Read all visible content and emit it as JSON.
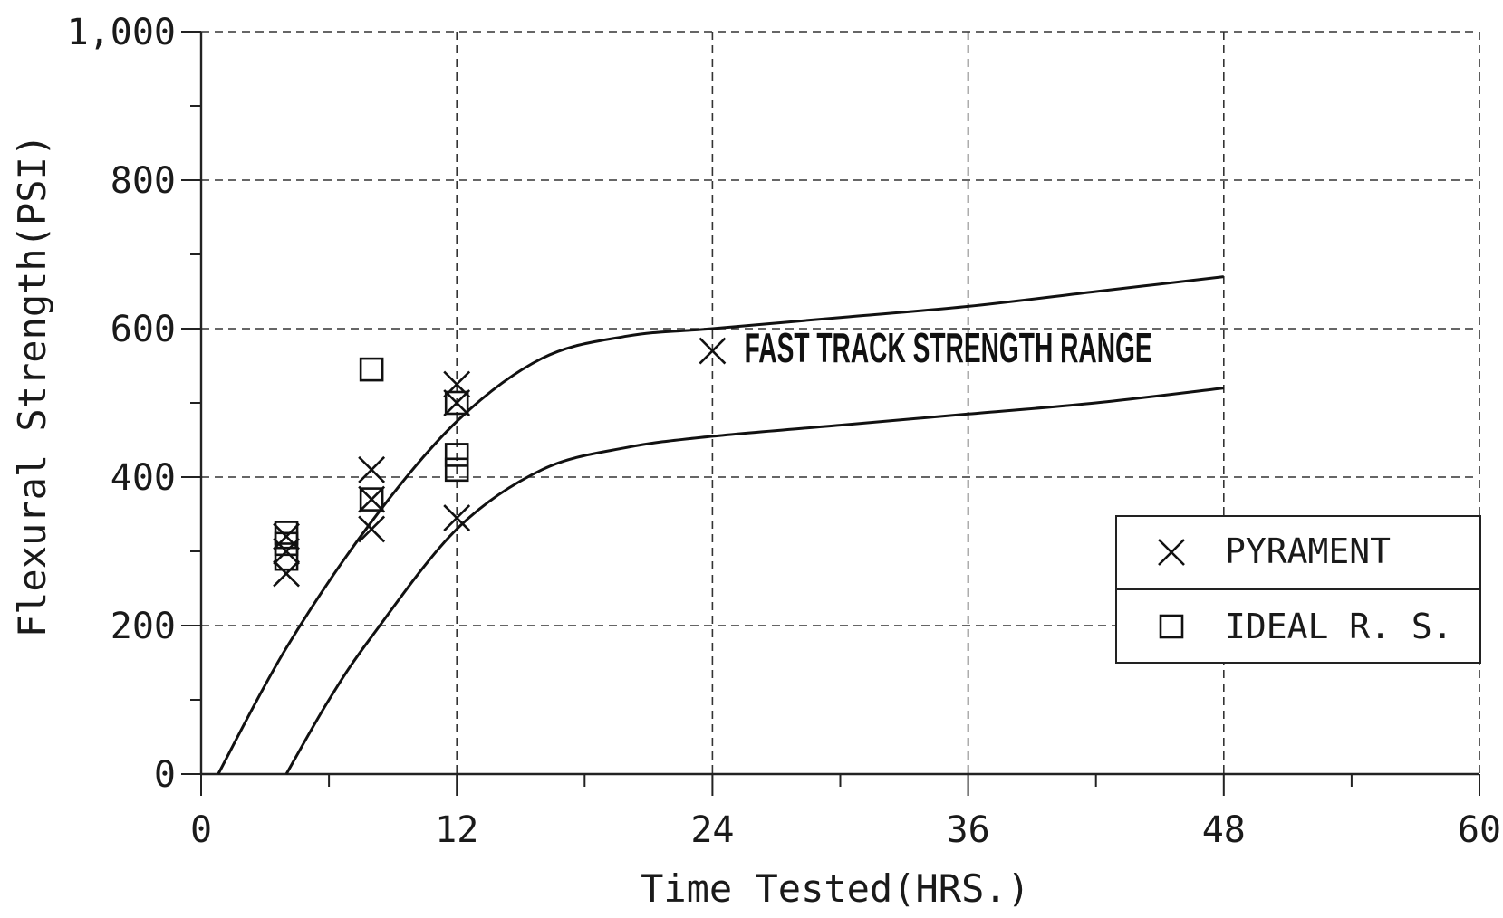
{
  "chart_data": {
    "type": "scatter",
    "title": "",
    "xlabel": "Time Tested(HRS.)",
    "ylabel": "Flexural Strength(PSI)",
    "xlim": [
      0,
      60
    ],
    "ylim": [
      0,
      1000
    ],
    "x_ticks": [
      {
        "value": 0,
        "label": "0"
      },
      {
        "value": 12,
        "label": "12"
      },
      {
        "value": 24,
        "label": "24"
      },
      {
        "value": 36,
        "label": "36"
      },
      {
        "value": 48,
        "label": "48"
      },
      {
        "value": 60,
        "label": "60"
      }
    ],
    "y_ticks": [
      {
        "value": 0,
        "label": "0"
      },
      {
        "value": 200,
        "label": "200"
      },
      {
        "value": 400,
        "label": "400"
      },
      {
        "value": 600,
        "label": "600"
      },
      {
        "value": 800,
        "label": "800"
      },
      {
        "value": 1000,
        "label": "1,000"
      }
    ],
    "grid": true,
    "legend_position": "right",
    "legend": [
      {
        "name": "PYRAMENT",
        "marker": "x"
      },
      {
        "name": "IDEAL R. S.",
        "marker": "square"
      }
    ],
    "series": [
      {
        "name": "PYRAMENT",
        "marker": "x",
        "points": [
          [
            4,
            270
          ],
          [
            4,
            300
          ],
          [
            4,
            320
          ],
          [
            8,
            330
          ],
          [
            8,
            410
          ],
          [
            8,
            370
          ],
          [
            12,
            345
          ],
          [
            12,
            500
          ],
          [
            12,
            525
          ],
          [
            24,
            570
          ]
        ]
      },
      {
        "name": "IDEAL R. S.",
        "marker": "square",
        "points": [
          [
            4,
            290
          ],
          [
            4,
            310
          ],
          [
            4,
            325
          ],
          [
            8,
            545
          ],
          [
            8,
            370
          ],
          [
            12,
            410
          ],
          [
            12,
            430
          ],
          [
            12,
            500
          ]
        ]
      }
    ],
    "range_curves": [
      {
        "id": "upper",
        "points": [
          [
            0.8,
            0
          ],
          [
            4,
            170
          ],
          [
            8,
            340
          ],
          [
            12,
            475
          ],
          [
            16,
            560
          ],
          [
            20,
            590
          ],
          [
            24,
            600
          ],
          [
            30,
            615
          ],
          [
            36,
            630
          ],
          [
            42,
            650
          ],
          [
            48,
            670
          ]
        ]
      },
      {
        "id": "lower",
        "points": [
          [
            4,
            0
          ],
          [
            6,
            100
          ],
          [
            8,
            185
          ],
          [
            12,
            330
          ],
          [
            16,
            410
          ],
          [
            20,
            440
          ],
          [
            24,
            455
          ],
          [
            30,
            470
          ],
          [
            36,
            485
          ],
          [
            42,
            500
          ],
          [
            48,
            520
          ]
        ]
      }
    ],
    "annotations": [
      {
        "text": "FAST TRACK STRENGTH RANGE",
        "x": 25.5,
        "y": 555
      }
    ]
  }
}
